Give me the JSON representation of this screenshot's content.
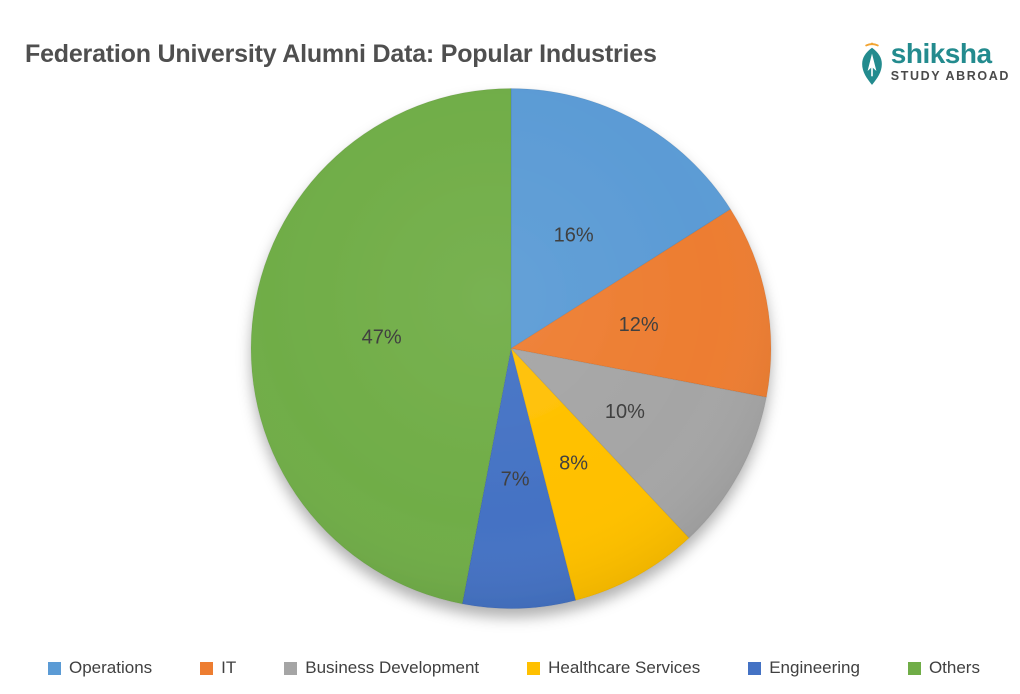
{
  "header": {
    "title": "Federation University Alumni Data: Popular Industries",
    "title_color": "#4f4f4f"
  },
  "logo": {
    "brand": "shiksha",
    "tagline": "STUDY ABROAD",
    "brand_color": "#238b8e",
    "tagline_color": "#4a4a4a",
    "accent_color": "#f2a431",
    "icon": "pen-nib-icon"
  },
  "chart_data": {
    "type": "pie",
    "title": "Federation University Alumni Data: Popular Industries",
    "categories": [
      "Operations",
      "IT",
      "Business Development",
      "Healthcare Services",
      "Engineering",
      "Others"
    ],
    "values": [
      16,
      12,
      10,
      8,
      7,
      47
    ],
    "labels": [
      "16%",
      "12%",
      "10%",
      "8%",
      "7%",
      "47%"
    ],
    "colors": [
      "#5b9bd5",
      "#ed7d31",
      "#a5a5a5",
      "#ffc000",
      "#4472c4",
      "#70ad47"
    ],
    "label_color": "#404040",
    "legend_position": "bottom",
    "legend_text_color": "#404040",
    "start_angle_deg": 0,
    "direction": "clockwise"
  }
}
